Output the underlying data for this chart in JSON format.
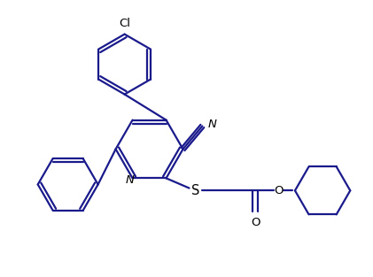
{
  "bg_color": "#ffffff",
  "bond_color": "#1a1a8c",
  "text_color": "#000000",
  "line_width": 1.6,
  "font_size": 9.5,
  "figsize": [
    4.21,
    3.13
  ],
  "dpi": 100,
  "xlim": [
    0,
    10.5
  ],
  "ylim": [
    0,
    7.8
  ]
}
